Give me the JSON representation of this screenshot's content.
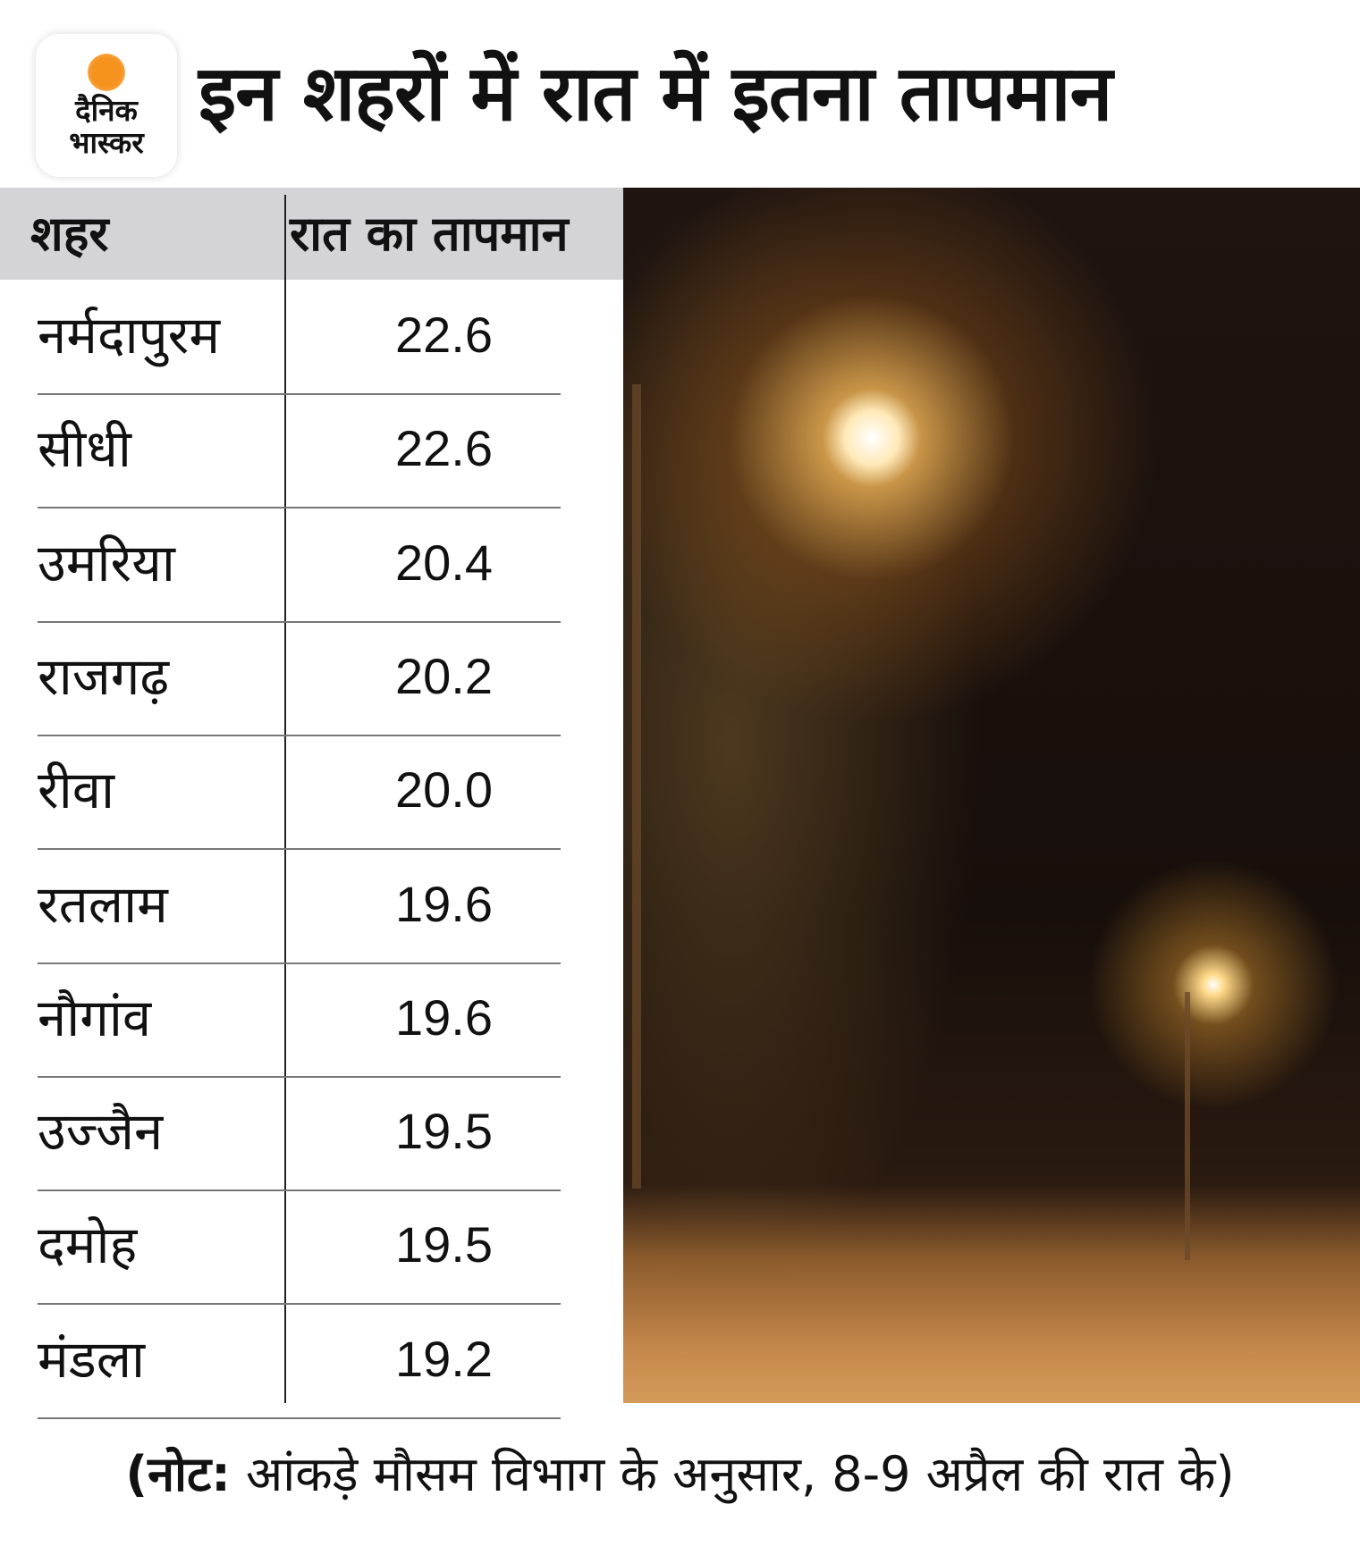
{
  "brand": {
    "logo_line1": "दैनिक",
    "logo_line2": "भास्कर",
    "sun_color": "#f6921e"
  },
  "title": "इन शहरों में रात में इतना तापमान",
  "table": {
    "headers": {
      "city": "शहर",
      "night_temp": "रात का तापमान"
    },
    "header_bg": "#d4d4d6",
    "rows": [
      {
        "city": "नर्मदापुरम",
        "temp": "22.6"
      },
      {
        "city": "सीधी",
        "temp": "22.6"
      },
      {
        "city": "उमरिया",
        "temp": "20.4"
      },
      {
        "city": "राजगढ़",
        "temp": "20.2"
      },
      {
        "city": "रीवा",
        "temp": "20.0"
      },
      {
        "city": "रतलाम",
        "temp": "19.6"
      },
      {
        "city": "नौगांव",
        "temp": "19.6"
      },
      {
        "city": "उज्जैन",
        "temp": "19.5"
      },
      {
        "city": "दमोह",
        "temp": "19.5"
      },
      {
        "city": "मंडला",
        "temp": "19.2"
      }
    ]
  },
  "note": {
    "label": "(नोट:",
    "text": " आंकड़े मौसम विभाग के अनुसार, 8-9 अप्रैल की रात के)"
  }
}
